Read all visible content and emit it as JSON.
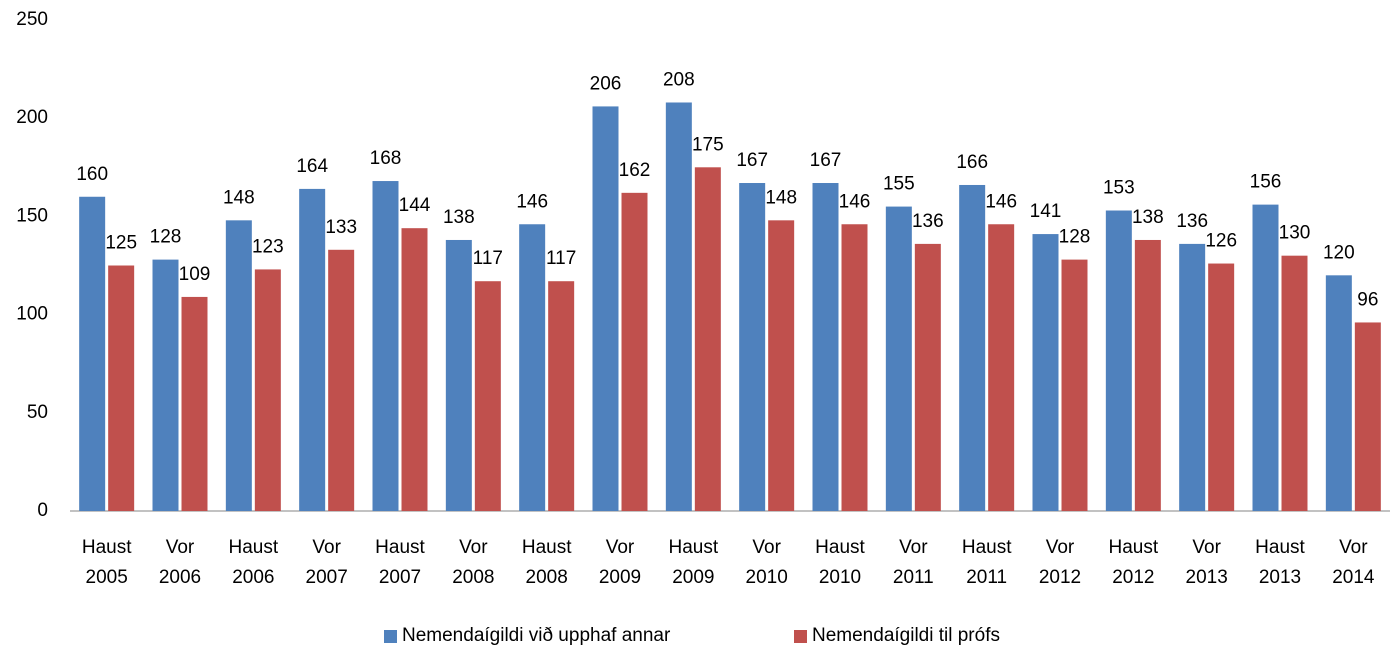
{
  "chart_data": {
    "type": "bar",
    "categories": [
      [
        "Haust",
        "2005"
      ],
      [
        "Vor",
        "2006"
      ],
      [
        "Haust",
        "2006"
      ],
      [
        "Vor",
        "2007"
      ],
      [
        "Haust",
        "2007"
      ],
      [
        "Vor",
        "2008"
      ],
      [
        "Haust",
        "2008"
      ],
      [
        "Vor",
        "2009"
      ],
      [
        "Haust",
        "2009"
      ],
      [
        "Vor",
        "2010"
      ],
      [
        "Haust",
        "2010"
      ],
      [
        "Vor",
        "2011"
      ],
      [
        "Haust",
        "2011"
      ],
      [
        "Vor",
        "2012"
      ],
      [
        "Haust",
        "2012"
      ],
      [
        "Vor",
        "2013"
      ],
      [
        "Haust",
        "2013"
      ],
      [
        "Vor",
        "2014"
      ]
    ],
    "series": [
      {
        "name": "Nemendaígildi við upphaf annar",
        "color": "#4f81bd",
        "values": [
          160,
          128,
          148,
          164,
          168,
          138,
          146,
          206,
          208,
          167,
          167,
          155,
          166,
          141,
          153,
          136,
          156,
          120
        ]
      },
      {
        "name": "Nemendaígildi til prófs",
        "color": "#c0504d",
        "values": [
          125,
          109,
          123,
          133,
          144,
          117,
          117,
          162,
          175,
          148,
          146,
          136,
          146,
          128,
          138,
          126,
          130,
          96
        ]
      }
    ],
    "ylim": [
      0,
      250
    ],
    "yticks": [
      0,
      50,
      100,
      150,
      200,
      250
    ],
    "grid": false,
    "legend": "bottom"
  }
}
